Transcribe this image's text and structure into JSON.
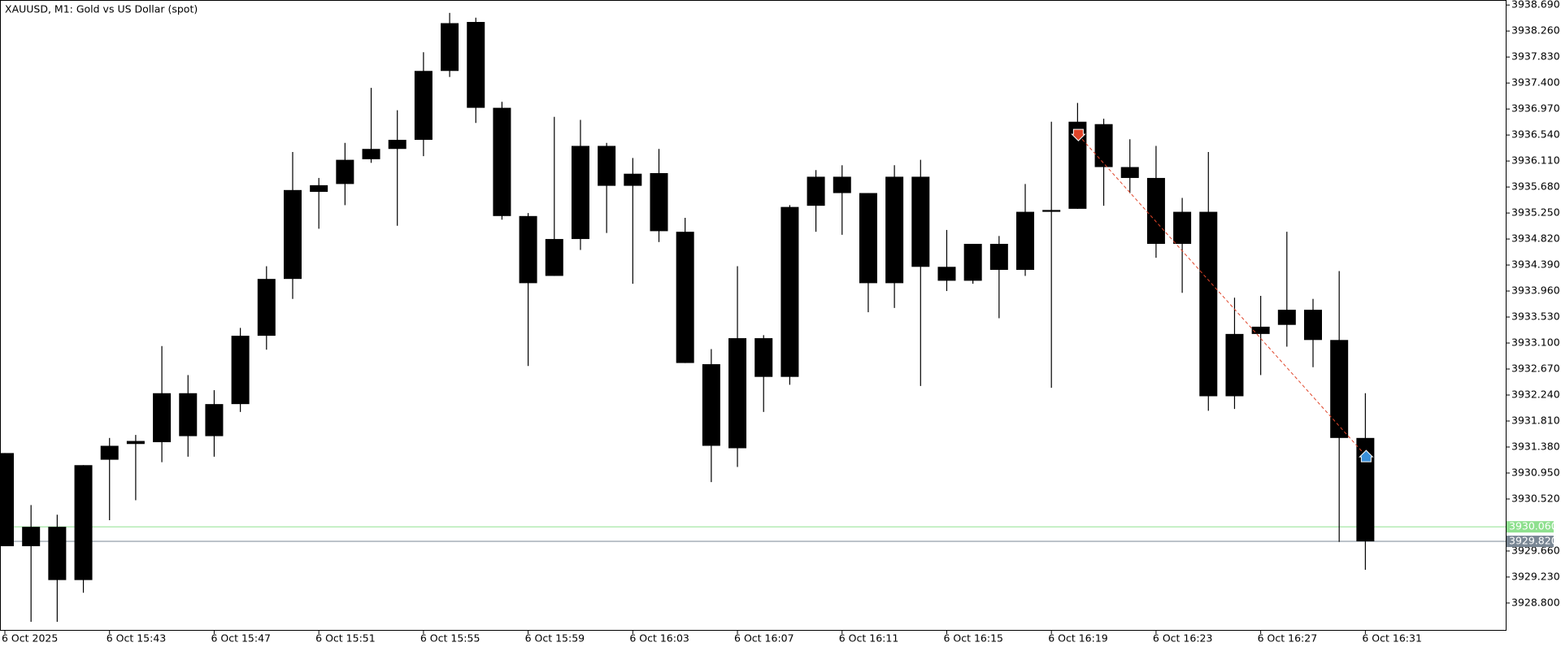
{
  "chart_data": {
    "type": "candlestick",
    "title": "XAUUSD, M1:  Gold vs US Dollar (spot)",
    "color": "#000000",
    "categories": [
      "6 Oct 2025",
      null,
      null,
      null,
      "6 Oct 15:43",
      null,
      null,
      null,
      "6 Oct 15:47",
      null,
      null,
      null,
      "6 Oct 15:51",
      null,
      null,
      null,
      "6 Oct 15:55",
      null,
      null,
      null,
      "6 Oct 15:59",
      null,
      null,
      null,
      "6 Oct 16:03",
      null,
      null,
      null,
      "6 Oct 16:07",
      null,
      null,
      null,
      "6 Oct 16:11",
      null,
      null,
      null,
      "6 Oct 16:15",
      null,
      null,
      null,
      "6 Oct 16:19",
      null,
      null,
      null,
      "6 Oct 16:23",
      null,
      null,
      null,
      "6 Oct 16:27",
      null,
      null,
      null,
      "6 Oct 16:31"
    ],
    "open": [
      3931.28,
      3929.74,
      3930.06,
      3929.18,
      3931.17,
      3931.43,
      3931.46,
      3932.27,
      3931.56,
      3932.09,
      3933.22,
      3934.16,
      3935.6,
      3935.73,
      3936.14,
      3936.31,
      3936.46,
      3937.6,
      3938.41,
      3936.99,
      3935.2,
      3934.21,
      3934.82,
      3936.36,
      3935.7,
      3935.91,
      3934.94,
      3932.75,
      3931.36,
      3933.18,
      3932.54,
      3935.37,
      3935.85,
      3935.58,
      3934.09,
      3935.85,
      3934.36,
      3934.13,
      3934.74,
      3934.31,
      3935.27,
      3935.32,
      3936.72,
      3936.01,
      3935.83,
      3934.74,
      3935.27,
      3932.22,
      3933.25,
      3933.4,
      3933.65,
      3933.15,
      3931.53
    ],
    "high": [
      3931.28,
      3930.42,
      3930.26,
      3931.08,
      3931.53,
      3931.58,
      3933.05,
      3932.57,
      3932.32,
      3933.35,
      3934.37,
      3936.26,
      3935.83,
      3936.41,
      3937.32,
      3936.95,
      3937.91,
      3938.56,
      3938.48,
      3937.09,
      3935.25,
      3936.84,
      3936.79,
      3936.41,
      3936.16,
      3936.31,
      3935.17,
      3933.0,
      3934.37,
      3933.23,
      3935.38,
      3935.96,
      3936.04,
      3935.58,
      3936.04,
      3936.13,
      3934.97,
      3934.74,
      3934.87,
      3935.73,
      3936.76,
      3937.07,
      3936.81,
      3936.47,
      3936.36,
      3935.5,
      3936.26,
      3933.85,
      3933.88,
      3934.94,
      3933.83,
      3934.29,
      3932.27
    ],
    "low": [
      3929.74,
      3928.49,
      3928.49,
      3928.97,
      3930.17,
      3930.5,
      3931.13,
      3931.22,
      3931.22,
      3931.96,
      3932.99,
      3933.83,
      3934.99,
      3935.38,
      3936.08,
      3935.04,
      3936.19,
      3937.5,
      3936.74,
      3935.14,
      3932.72,
      3934.21,
      3934.64,
      3934.92,
      3934.08,
      3934.77,
      3932.77,
      3930.8,
      3931.05,
      3931.96,
      3932.41,
      3934.94,
      3934.89,
      3933.61,
      3933.68,
      3932.39,
      3933.96,
      3934.08,
      3933.51,
      3934.21,
      3932.36,
      3935.32,
      3935.37,
      3935.58,
      3934.51,
      3933.93,
      3931.98,
      3932.01,
      3932.57,
      3933.04,
      3932.7,
      3929.81,
      3929.35
    ],
    "close": [
      3929.74,
      3930.06,
      3929.18,
      3931.08,
      3931.4,
      3931.48,
      3932.27,
      3931.56,
      3932.09,
      3933.22,
      3934.16,
      3935.63,
      3935.71,
      3936.13,
      3936.31,
      3936.46,
      3937.6,
      3938.39,
      3936.99,
      3935.2,
      3934.09,
      3934.82,
      3936.36,
      3935.7,
      3935.9,
      3934.95,
      3932.77,
      3931.4,
      3933.18,
      3932.54,
      3935.35,
      3935.85,
      3935.58,
      3934.09,
      3935.85,
      3934.36,
      3934.13,
      3934.74,
      3934.31,
      3935.27,
      3935.3,
      3936.76,
      3936.01,
      3935.83,
      3934.74,
      3935.27,
      3932.22,
      3933.25,
      3933.37,
      3933.65,
      3933.15,
      3931.53,
      3929.82
    ],
    "sell_marks": {
      "color": "#e0452a",
      "values": [
        null,
        null,
        null,
        null,
        null,
        null,
        null,
        null,
        null,
        null,
        null,
        null,
        null,
        null,
        null,
        null,
        null,
        null,
        null,
        null,
        null,
        null,
        null,
        null,
        null,
        null,
        null,
        null,
        null,
        null,
        null,
        null,
        null,
        null,
        null,
        null,
        null,
        null,
        null,
        null,
        null,
        3936.54,
        null,
        null,
        null,
        null,
        null,
        null,
        null,
        null,
        null,
        null,
        null
      ]
    },
    "buy_marks": {
      "color": "#3a8fd9",
      "values": [
        null,
        null,
        null,
        null,
        null,
        null,
        null,
        null,
        null,
        null,
        null,
        null,
        null,
        null,
        null,
        null,
        null,
        null,
        null,
        null,
        null,
        null,
        null,
        null,
        null,
        null,
        null,
        null,
        null,
        null,
        null,
        null,
        null,
        null,
        null,
        null,
        null,
        null,
        null,
        null,
        null,
        null,
        null,
        null,
        null,
        null,
        null,
        null,
        null,
        null,
        null,
        null,
        3931.23
      ]
    },
    "price_lines": [
      {
        "value": 3930.06,
        "label": "3930.060",
        "color": "#8fe08f"
      },
      {
        "value": 3929.82,
        "label": "3929.820",
        "color": "#7a8794"
      }
    ],
    "ylim": [
      3928.355,
      3938.773
    ],
    "yticks": [
      {
        "value": 3938.69,
        "label": "3938.690"
      },
      {
        "value": 3938.26,
        "label": "3938.260"
      },
      {
        "value": 3937.83,
        "label": "3937.830"
      },
      {
        "value": 3937.4,
        "label": "3937.400"
      },
      {
        "value": 3936.97,
        "label": "3936.970"
      },
      {
        "value": 3936.54,
        "label": "3936.540"
      },
      {
        "value": 3936.11,
        "label": "3936.110"
      },
      {
        "value": 3935.68,
        "label": "3935.680"
      },
      {
        "value": 3935.25,
        "label": "3935.250"
      },
      {
        "value": 3934.82,
        "label": "3934.820"
      },
      {
        "value": 3934.39,
        "label": "3934.390"
      },
      {
        "value": 3933.96,
        "label": "3933.960"
      },
      {
        "value": 3933.53,
        "label": "3933.530"
      },
      {
        "value": 3933.1,
        "label": "3933.100"
      },
      {
        "value": 3932.67,
        "label": "3932.670"
      },
      {
        "value": 3932.24,
        "label": "3932.240"
      },
      {
        "value": 3931.81,
        "label": "3931.810"
      },
      {
        "value": 3931.38,
        "label": "3931.380"
      },
      {
        "value": 3930.95,
        "label": "3930.950"
      },
      {
        "value": 3930.52,
        "label": "3930.520"
      },
      {
        "value": 3929.66,
        "label": "3929.660"
      },
      {
        "value": 3929.23,
        "label": "3929.230"
      },
      {
        "value": 3928.8,
        "label": "3928.800"
      }
    ],
    "grid": false
  }
}
